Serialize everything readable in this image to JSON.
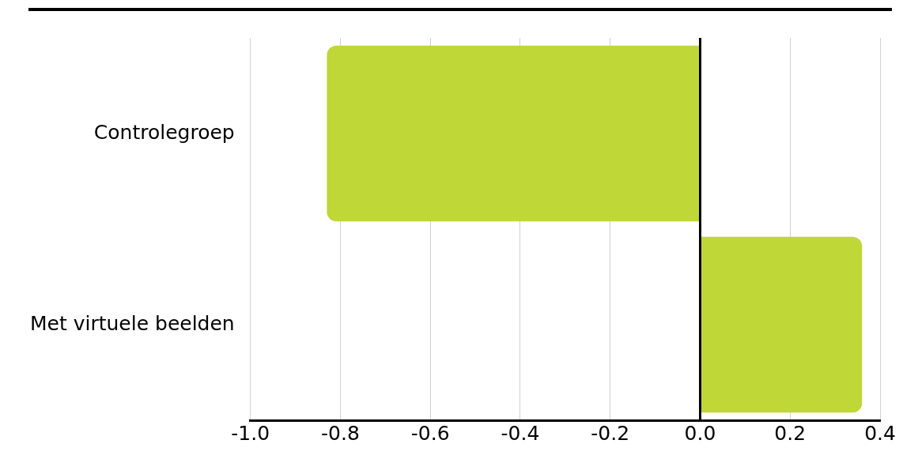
{
  "chart_data": {
    "type": "bar",
    "orientation": "horizontal",
    "categories": [
      "Controlegroep",
      "Met virtuele beelden"
    ],
    "values": [
      -0.83,
      0.36
    ],
    "color": "#bfd737",
    "xlim": [
      -1.0,
      0.4
    ],
    "xticks": [
      {
        "value": -1,
        "label": "-1.0"
      },
      {
        "value": -0.8,
        "label": "-0.8"
      },
      {
        "value": -0.6,
        "label": "-0.6"
      },
      {
        "value": -0.4,
        "label": "-0.4"
      },
      {
        "value": -0.2,
        "label": "-0.2"
      },
      {
        "value": 0,
        "label": "0.0"
      },
      {
        "value": 0.2,
        "label": "0.2"
      },
      {
        "value": 0.4,
        "label": "0.4"
      }
    ],
    "grid": "x",
    "legend": false
  }
}
